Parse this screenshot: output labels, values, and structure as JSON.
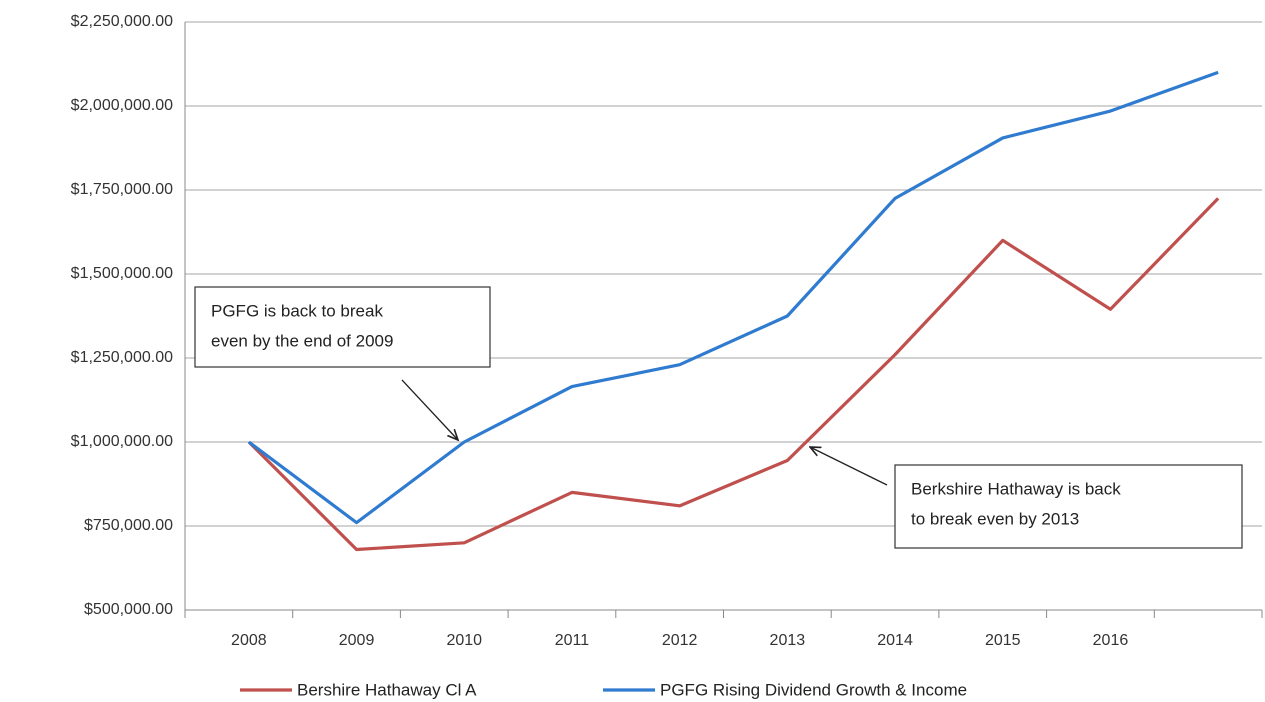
{
  "chart_data": {
    "type": "line",
    "categories": [
      "2008",
      "2009",
      "2010",
      "2011",
      "2012",
      "2013",
      "2014",
      "2015",
      "2016",
      null
    ],
    "series": [
      {
        "name": "Bershire Hathaway Cl A",
        "color": "#c0504d",
        "values": [
          1000000,
          680000,
          700000,
          850000,
          810000,
          945000,
          1260000,
          1600000,
          1395000,
          1725000
        ]
      },
      {
        "name": "PGFG Rising Dividend Growth & Income",
        "color": "#2f7bd0",
        "values": [
          1000000,
          760000,
          1000000,
          1165000,
          1230000,
          1375000,
          1725000,
          1905000,
          1985000,
          2100000
        ]
      }
    ],
    "ylim": [
      500000,
      2250000
    ],
    "yticks": [
      {
        "value": 500000,
        "label": "$500,000.00"
      },
      {
        "value": 750000,
        "label": "$750,000.00"
      },
      {
        "value": 1000000,
        "label": "$1,000,000.00"
      },
      {
        "value": 1250000,
        "label": "$1,250,000.00"
      },
      {
        "value": 1500000,
        "label": "$1,500,000.00"
      },
      {
        "value": 1750000,
        "label": "$1,750,000.00"
      },
      {
        "value": 2000000,
        "label": "$2,000,000.00"
      },
      {
        "value": 2250000,
        "label": "$2,250,000.00"
      }
    ],
    "grid": true,
    "legend": "bottom",
    "annotations": [
      {
        "lines": [
          "PGFG  is back to break",
          "even by the end of 2009"
        ]
      },
      {
        "lines": [
          "Berkshire Hathaway is back",
          "to break even  by 2013"
        ]
      }
    ]
  }
}
